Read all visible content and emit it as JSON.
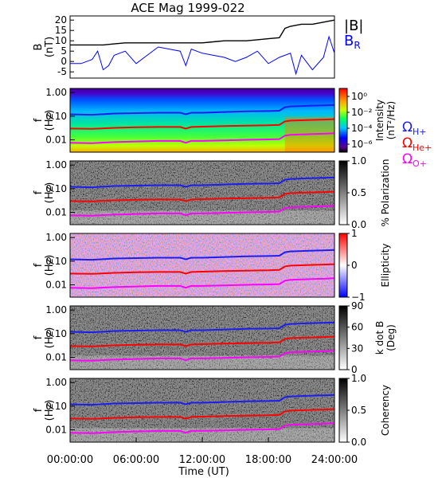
{
  "chart_data": {
    "type": "line",
    "title": "ACE Mag 1999-022",
    "xlabel": "Time (UT)",
    "x_ticks": [
      "00:00:00",
      "06:00:00",
      "12:00:00",
      "18:00:00",
      "24:00:00"
    ],
    "x_range_hours": [
      0,
      24
    ],
    "grid": false,
    "field_panel": {
      "ylabel_line1": "B",
      "ylabel_line2": "(nT)",
      "ylim": [
        -8,
        22
      ],
      "y_ticks": [
        "20",
        "15",
        "10",
        "5",
        "0",
        "-5"
      ],
      "legend_B": "|B|",
      "legend_BR": "B",
      "legend_BR_sub": "R",
      "series": [
        {
          "name": "|B|",
          "color": "#000000",
          "x": [
            0,
            1,
            2,
            3,
            4,
            5,
            6,
            7,
            8,
            9,
            10,
            11,
            12,
            13,
            14,
            15,
            16,
            17,
            18,
            19,
            19.5,
            20,
            21,
            22,
            23,
            24
          ],
          "y": [
            8,
            8,
            8,
            8,
            8.5,
            9,
            9,
            9,
            9,
            9,
            9,
            9,
            9,
            9.5,
            10,
            10,
            10,
            10.5,
            11,
            11.5,
            16,
            17,
            18,
            18,
            19,
            20
          ]
        },
        {
          "name": "B_R",
          "color": "#0000ff",
          "x": [
            0,
            0.5,
            1,
            1.5,
            2,
            2.5,
            3,
            3.5,
            4,
            5,
            6,
            7,
            8,
            9,
            10,
            10.5,
            11,
            12,
            13,
            14,
            15,
            16,
            17,
            18,
            19,
            20,
            20.5,
            21,
            22,
            23,
            23.5,
            24
          ],
          "y": [
            -1,
            -1,
            -1,
            0,
            1,
            5,
            -4,
            -2,
            3,
            5,
            -1,
            3,
            7,
            6,
            5,
            -2,
            6,
            4,
            3,
            2,
            0,
            2,
            5,
            -1,
            2,
            4,
            -6,
            3,
            -4,
            2,
            12,
            4
          ]
        }
      ]
    },
    "freq_ylabel_line1": "f",
    "freq_ylabel_line2": "(Hz)",
    "freq_ylim_hz": [
      0.003,
      1.5
    ],
    "freq_y_ticks": [
      "1.00",
      "0.10",
      "0.01"
    ],
    "freq_y_tick_values": [
      1,
      0.1,
      0.01
    ],
    "gyrofrequencies": {
      "x": [
        0,
        2,
        4,
        6,
        8,
        10,
        10.5,
        11,
        12,
        14,
        16,
        18,
        19,
        19.5,
        20,
        21,
        22,
        23,
        24
      ],
      "series": [
        {
          "name": "H+",
          "color": "#1d1df0",
          "hz": [
            0.12,
            0.115,
            0.13,
            0.135,
            0.14,
            0.14,
            0.12,
            0.14,
            0.14,
            0.15,
            0.16,
            0.165,
            0.17,
            0.24,
            0.26,
            0.27,
            0.28,
            0.29,
            0.3
          ]
        },
        {
          "name": "He+",
          "color": "#ff0000",
          "hz": [
            0.03,
            0.029,
            0.032,
            0.034,
            0.035,
            0.035,
            0.03,
            0.035,
            0.036,
            0.038,
            0.04,
            0.041,
            0.043,
            0.06,
            0.065,
            0.067,
            0.07,
            0.072,
            0.075
          ]
        },
        {
          "name": "O+",
          "color": "#ff00ff",
          "hz": [
            0.0075,
            0.0072,
            0.008,
            0.0085,
            0.009,
            0.009,
            0.0075,
            0.009,
            0.009,
            0.0095,
            0.01,
            0.0104,
            0.0107,
            0.015,
            0.0163,
            0.0168,
            0.0175,
            0.018,
            0.019
          ]
        }
      ],
      "legend_omega": "Ω",
      "legend_subs": [
        "H+",
        "He+",
        "O+"
      ]
    },
    "spectrogram_panels": [
      {
        "id": "intensity",
        "colorbar_label": "Intensity",
        "colorbar_unit": "(nT²/Hz)",
        "colormap": "rainbow",
        "colorbar_ticks": [
          "10⁰",
          "10⁻²",
          "10⁻⁴",
          "10⁻⁶"
        ],
        "colorbar_range": [
          -7,
          1
        ]
      },
      {
        "id": "polarization",
        "colorbar_label": "% Polarization",
        "colormap": "gray",
        "colorbar_ticks": [
          "1.0",
          "0.5",
          "0.0"
        ],
        "colorbar_range": [
          0,
          1
        ]
      },
      {
        "id": "ellipticity",
        "colorbar_label": "Ellipticity",
        "colormap": "bwr",
        "colorbar_ticks": [
          "1",
          "0",
          "−1"
        ],
        "colorbar_range": [
          -1,
          1
        ]
      },
      {
        "id": "kdotb",
        "colorbar_label": "k dot B",
        "colorbar_unit": "(Deg)",
        "colormap": "gray",
        "colorbar_ticks": [
          "90",
          "60",
          "30",
          "0"
        ],
        "colorbar_range": [
          0,
          90
        ]
      },
      {
        "id": "coherency",
        "colorbar_label": "Coherency",
        "colormap": "gray",
        "colorbar_ticks": [
          "1.0",
          "0.5",
          "0.0"
        ],
        "colorbar_range": [
          0,
          1
        ]
      }
    ]
  }
}
